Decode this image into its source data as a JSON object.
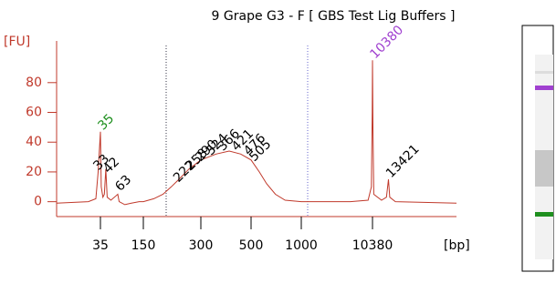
{
  "chart_data": {
    "type": "line",
    "title": "9 Grape G3 - F  [ GBS Test Lig Buffers ]",
    "y_label": "[FU]",
    "x_label": "[bp]",
    "x": [
      20,
      30,
      33,
      34,
      35,
      36,
      38,
      40,
      42,
      44,
      50,
      63,
      66,
      80,
      100,
      130,
      150,
      170,
      190,
      210,
      230,
      260,
      300,
      350,
      400,
      450,
      500,
      560,
      620,
      700,
      800,
      1000,
      2000,
      5000,
      9000,
      10000,
      10300,
      10380,
      10450,
      10600,
      12000,
      13000,
      13421,
      13700,
      15000,
      40000
    ],
    "series": [
      {
        "color": "#c0392b",
        "values": [
          -1,
          0,
          2,
          20,
          47,
          10,
          3,
          5,
          22,
          3,
          1,
          5,
          0,
          -2,
          -1,
          0,
          0,
          2,
          5,
          10,
          15,
          22,
          28,
          32,
          34,
          32,
          28,
          20,
          12,
          5,
          1,
          0,
          0,
          0,
          1,
          10,
          60,
          95,
          50,
          5,
          1,
          3,
          15,
          3,
          0,
          -1
        ]
      }
    ],
    "xlim": [
      20,
      40000
    ],
    "xticks": [
      35,
      150,
      300,
      500,
      1000,
      10380
    ],
    "ylim": [
      -10,
      108
    ],
    "yticks": [
      0,
      20,
      40,
      60,
      80
    ],
    "peak_labels": [
      {
        "x": 35,
        "y": 47,
        "color": "#1e8f1e"
      },
      {
        "x": 33,
        "y": 20,
        "color": "#000000"
      },
      {
        "x": 42,
        "y": 18,
        "color": "#000000"
      },
      {
        "x": 63,
        "y": 6,
        "color": "#000000"
      },
      {
        "x": 222,
        "y": 12,
        "color": "#000000"
      },
      {
        "x": 258,
        "y": 20,
        "color": "#000000"
      },
      {
        "x": 290,
        "y": 26,
        "color": "#000000"
      },
      {
        "x": 324,
        "y": 30,
        "color": "#000000"
      },
      {
        "x": 366,
        "y": 33,
        "color": "#000000"
      },
      {
        "x": 421,
        "y": 33,
        "color": "#000000"
      },
      {
        "x": 476,
        "y": 30,
        "color": "#000000"
      },
      {
        "x": 505,
        "y": 26,
        "color": "#000000"
      },
      {
        "x": 10380,
        "y": 95,
        "color": "#a040d0"
      },
      {
        "x": 13421,
        "y": 15,
        "color": "#000000"
      }
    ]
  }
}
